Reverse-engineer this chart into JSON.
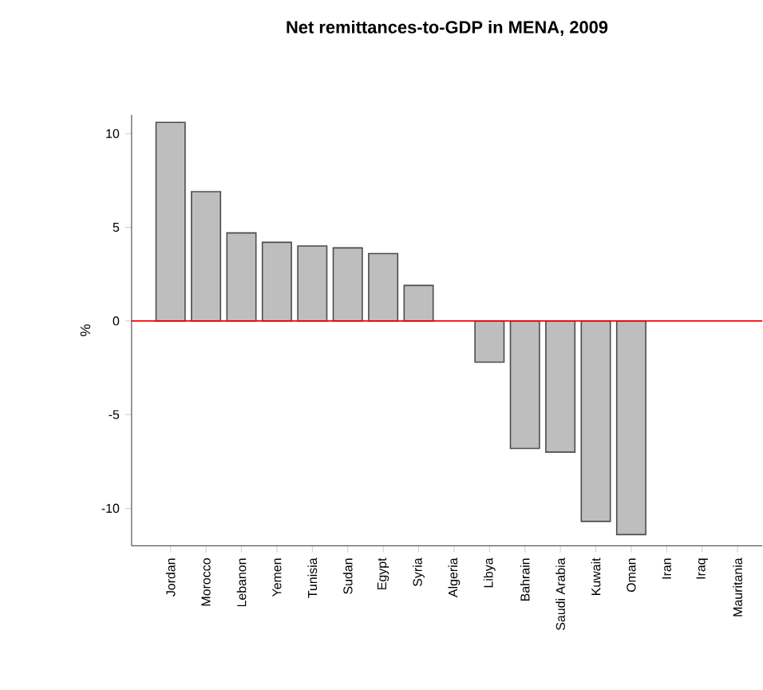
{
  "chart_data": {
    "type": "bar",
    "title": "Net remittances-to-GDP in MENA, 2009",
    "ylabel": "%",
    "categories": [
      "Jordan",
      "Morocco",
      "Lebanon",
      "Yemen",
      "Tunisia",
      "Sudan",
      "Egypt",
      "Syria",
      "Algeria",
      "Libya",
      "Bahrain",
      "Saudi Arabia",
      "Kuwait",
      "Oman",
      "Iran",
      "Iraq",
      "Mauritania"
    ],
    "values": [
      10.6,
      6.9,
      4.7,
      4.2,
      4.0,
      3.9,
      3.6,
      1.9,
      null,
      -2.2,
      -6.8,
      -7.0,
      -10.7,
      -11.4,
      null,
      null,
      null
    ],
    "color": "#bebebe",
    "ylim": [
      -12,
      11
    ],
    "yticks": [
      -10,
      -5,
      0,
      5,
      10
    ],
    "ref_lines": [
      {
        "axis": "y",
        "value": 0,
        "color": "#ff0000"
      }
    ]
  }
}
